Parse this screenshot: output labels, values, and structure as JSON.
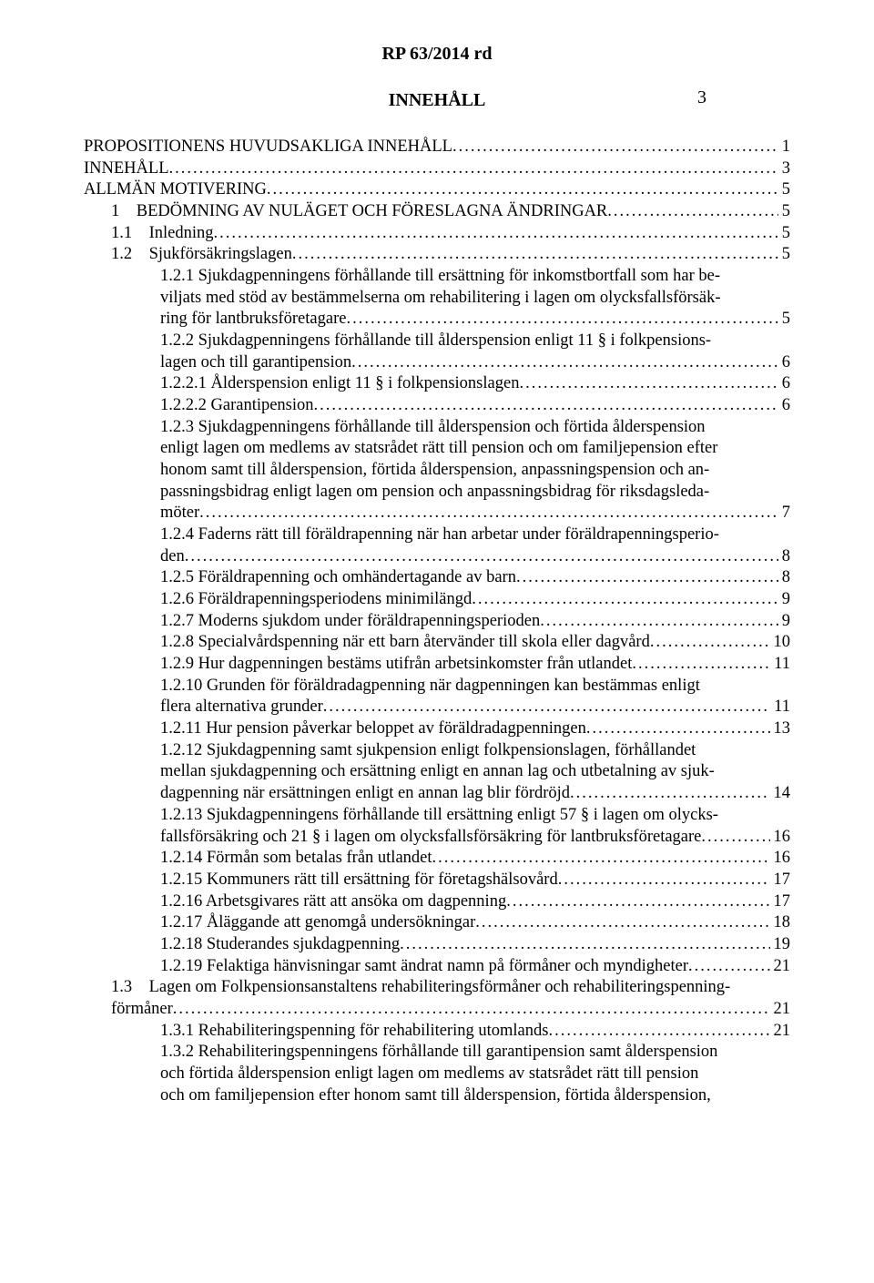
{
  "header": {
    "title": "RP 63/2014 rd",
    "page_number": "3"
  },
  "section_title": "INNEHÅLL",
  "toc": [
    {
      "indent": 0,
      "lines": [
        "PROPOSITIONENS HUVUDSAKLIGA INNEHÅLL"
      ],
      "page": "1"
    },
    {
      "indent": 0,
      "lines": [
        "INNEHÅLL"
      ],
      "page": "3"
    },
    {
      "indent": 0,
      "lines": [
        "ALLMÄN MOTIVERING"
      ],
      "page": "5"
    },
    {
      "indent": 1,
      "lines": [
        "1 BEDÖMNING AV NULÄGET OCH FÖRESLAGNA ÄNDRINGAR"
      ],
      "page": "5"
    },
    {
      "indent": 1,
      "lines": [
        "1.1 Inledning"
      ],
      "page": "5"
    },
    {
      "indent": 1,
      "lines": [
        "1.2 Sjukförsäkringslagen"
      ],
      "page": "5"
    },
    {
      "indent": 2,
      "lines": [
        "1.2.1 Sjukdagpenningens förhållande till ersättning för inkomstbortfall som har be-",
        "viljats med stöd av bestämmelserna om rehabilitering i lagen om olycksfallsförsäk-",
        "ring för lantbruksföretagare"
      ],
      "page": "5"
    },
    {
      "indent": 2,
      "lines": [
        "1.2.2 Sjukdagpenningens förhållande till ålderspension enligt 11 § i folkpensions-",
        "lagen och till garantipension"
      ],
      "page": "6"
    },
    {
      "indent": 2,
      "lines": [
        "1.2.2.1 Ålderspension enligt 11 § i folkpensionslagen"
      ],
      "page": "6"
    },
    {
      "indent": 2,
      "lines": [
        "1.2.2.2 Garantipension"
      ],
      "page": "6"
    },
    {
      "indent": 2,
      "lines": [
        "1.2.3 Sjukdagpenningens förhållande till ålderspension och förtida ålderspension",
        "enligt lagen om medlems av statsrådet rätt till pension och om familjepension efter",
        "honom samt till ålderspension, förtida ålderspension, anpassningspension och an-",
        "passningsbidrag enligt lagen om pension och anpassningsbidrag för riksdagsleda-",
        "möter"
      ],
      "page": "7"
    },
    {
      "indent": 2,
      "lines": [
        "1.2.4 Faderns rätt till föräldrapenning när han arbetar under föräldrapenningsperio-",
        "den"
      ],
      "page": "8"
    },
    {
      "indent": 2,
      "lines": [
        "1.2.5 Föräldrapenning och omhändertagande av barn"
      ],
      "page": "8"
    },
    {
      "indent": 2,
      "lines": [
        "1.2.6 Föräldrapenningsperiodens minimilängd"
      ],
      "page": "9"
    },
    {
      "indent": 2,
      "lines": [
        "1.2.7 Moderns sjukdom under föräldrapenningsperioden"
      ],
      "page": "9"
    },
    {
      "indent": 2,
      "lines": [
        "1.2.8 Specialvårdspenning när ett barn återvänder till skola eller dagvård"
      ],
      "page": "10"
    },
    {
      "indent": 2,
      "lines": [
        "1.2.9 Hur dagpenningen bestäms utifrån arbetsinkomster från utlandet"
      ],
      "page": "11"
    },
    {
      "indent": 2,
      "lines": [
        "1.2.10 Grunden för föräldradagpenning när dagpenningen kan bestämmas enligt",
        "flera alternativa grunder"
      ],
      "page": "11"
    },
    {
      "indent": 2,
      "lines": [
        "1.2.11 Hur pension påverkar beloppet av föräldradagpenningen"
      ],
      "page": "13"
    },
    {
      "indent": 2,
      "lines": [
        "1.2.12 Sjukdagpenning samt sjukpension enligt folkpensionslagen, förhållandet",
        "mellan sjukdagpenning och ersättning enligt en annan lag och utbetalning av sjuk-",
        "dagpenning när ersättningen enligt en annan lag blir fördröjd"
      ],
      "page": "14"
    },
    {
      "indent": 2,
      "lines": [
        "1.2.13 Sjukdagpenningens förhållande till ersättning enligt 57 § i lagen om olycks-",
        "fallsförsäkring och 21 § i lagen om olycksfallsförsäkring för lantbruksföretagare"
      ],
      "page": "16"
    },
    {
      "indent": 2,
      "lines": [
        "1.2.14 Förmån som betalas från utlandet"
      ],
      "page": "16"
    },
    {
      "indent": 2,
      "lines": [
        "1.2.15 Kommuners rätt till ersättning för företagshälsovård"
      ],
      "page": "17"
    },
    {
      "indent": 2,
      "lines": [
        "1.2.16 Arbetsgivares rätt att ansöka om dagpenning"
      ],
      "page": "17"
    },
    {
      "indent": 2,
      "lines": [
        "1.2.17 Åläggande att genomgå undersökningar"
      ],
      "page": "18"
    },
    {
      "indent": 2,
      "lines": [
        "1.2.18 Studerandes sjukdagpenning"
      ],
      "page": "19"
    },
    {
      "indent": 2,
      "lines": [
        "1.2.19 Felaktiga hänvisningar samt ändrat namn på förmåner och myndigheter"
      ],
      "page": "21"
    },
    {
      "indent": 1,
      "lines": [
        "1.3 Lagen om Folkpensionsanstaltens rehabiliteringsförmåner och rehabiliteringspenning-",
        "förmåner"
      ],
      "page": "21"
    },
    {
      "indent": 2,
      "lines": [
        "1.3.1 Rehabiliteringspenning för rehabilitering utomlands"
      ],
      "page": "21"
    },
    {
      "indent": 2,
      "lines": [
        "1.3.2 Rehabiliteringspenningens förhållande till garantipension samt ålderspension",
        "och förtida ålderspension enligt lagen om medlems av statsrådet rätt till pension",
        "och om familjepension efter honom samt till ålderspension, förtida ålderspension,"
      ],
      "page": ""
    }
  ]
}
